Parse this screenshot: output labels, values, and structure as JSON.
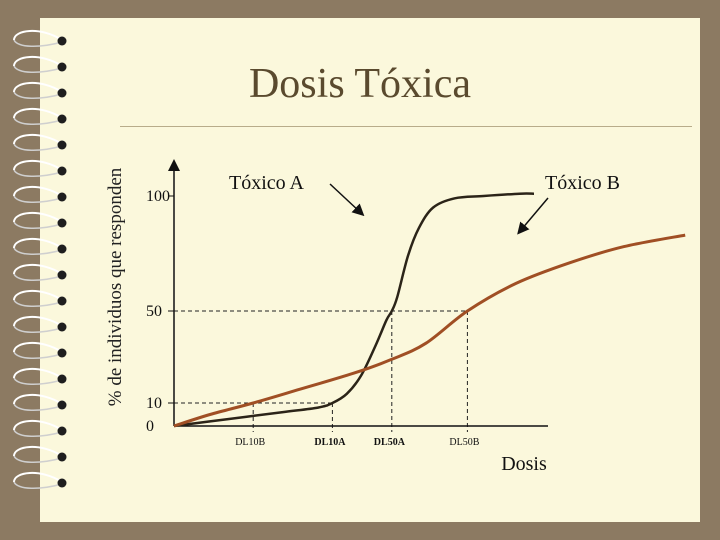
{
  "slide": {
    "title": "Dosis Tóxica",
    "background_color": "#fbf8dc",
    "frame_color": "#8c7a62"
  },
  "chart_data": {
    "type": "line",
    "title": "",
    "ylabel": "% de individuos que responden",
    "xlabel": "Dosis",
    "y_ticks": [
      {
        "value": 100,
        "label": "100"
      },
      {
        "value": 50,
        "label": "50"
      },
      {
        "value": 10,
        "label": "10"
      },
      {
        "value": 0,
        "label": "0"
      }
    ],
    "x_ticks": [
      {
        "key": "dl10b",
        "value": 0.22,
        "label": "DL10B",
        "bold": false
      },
      {
        "key": "dl10a",
        "value": 0.44,
        "label": "DL10A",
        "bold": true
      },
      {
        "key": "dl50a",
        "value": 0.605,
        "label": "DL50A",
        "bold": true
      },
      {
        "key": "dl50b",
        "value": 0.815,
        "label": "DL50B",
        "bold": false
      }
    ],
    "series": [
      {
        "name": "Tóxico A",
        "color": "#2b2418",
        "x": [
          0.0,
          0.15,
          0.3,
          0.4,
          0.44,
          0.48,
          0.52,
          0.56,
          0.59,
          0.605,
          0.62,
          0.65,
          0.68,
          0.72,
          0.78,
          0.86,
          0.96,
          1.0
        ],
        "y": [
          0,
          3,
          6,
          8,
          10,
          14,
          22,
          35,
          46,
          50,
          56,
          74,
          86,
          95,
          99,
          100,
          101,
          101
        ]
      },
      {
        "name": "Tóxico B",
        "color": "#a04f24",
        "x": [
          0.0,
          0.1,
          0.22,
          0.35,
          0.5,
          0.605,
          0.7,
          0.815,
          0.95,
          1.1,
          1.25,
          1.42
        ],
        "y": [
          0,
          5,
          10,
          16,
          23,
          29,
          36,
          50,
          62,
          71,
          78,
          83
        ]
      }
    ],
    "annotations": [
      {
        "text": "Tóxico A",
        "points_to": "Tóxico A"
      },
      {
        "text": "Tóxico B",
        "points_to": "Tóxico B"
      }
    ],
    "ylim": [
      0,
      100
    ],
    "grid": false,
    "legend": "none"
  }
}
